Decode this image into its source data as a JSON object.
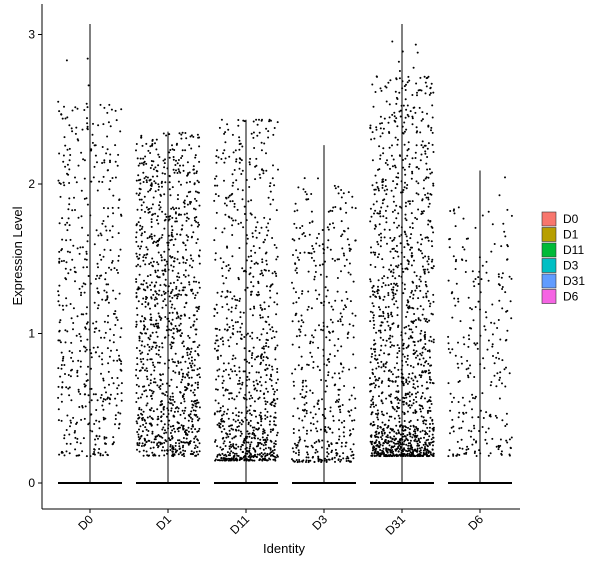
{
  "chart_data": {
    "type": "violin-jitter",
    "title": "",
    "xlabel": "Identity",
    "ylabel": "Expression Level",
    "ylim": [
      -0.17,
      3.1
    ],
    "yticks": [
      0,
      1,
      2,
      3
    ],
    "grid": false,
    "legend_position": "right",
    "categories": [
      "D0",
      "D1",
      "D11",
      "D3",
      "D31",
      "D6"
    ],
    "series": [
      {
        "name": "D0",
        "color": "#F8766D",
        "max": 3.07,
        "nonzero_range": [
          0.18,
          2.55
        ],
        "point_count": 520
      },
      {
        "name": "D1",
        "color": "#B79F00",
        "max": 2.35,
        "nonzero_range": [
          0.18,
          2.33
        ],
        "point_count": 1150
      },
      {
        "name": "D11",
        "color": "#00BA38",
        "max": 2.43,
        "nonzero_range": [
          0.15,
          2.43
        ],
        "point_count": 900
      },
      {
        "name": "D3",
        "color": "#00BFC4",
        "max": 2.26,
        "nonzero_range": [
          0.14,
          2.0
        ],
        "point_count": 480
      },
      {
        "name": "D31",
        "color": "#619CFF",
        "max": 3.07,
        "nonzero_range": [
          0.18,
          2.72
        ],
        "point_count": 1400
      },
      {
        "name": "D6",
        "color": "#F564E3",
        "max": 2.09,
        "nonzero_range": [
          0.18,
          1.85
        ],
        "point_count": 260
      }
    ]
  }
}
